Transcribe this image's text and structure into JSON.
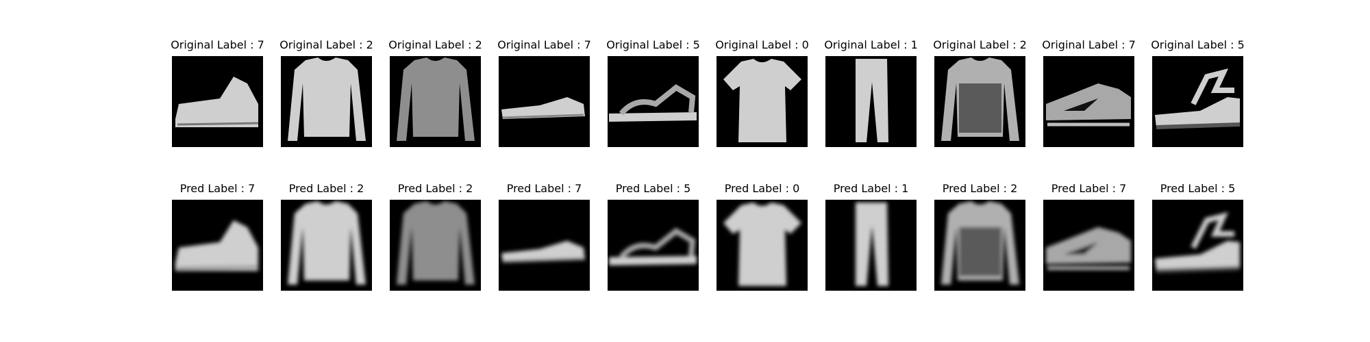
{
  "original_prefix": "Original Label : ",
  "pred_prefix": "Pred Label : ",
  "items": [
    {
      "label": "7",
      "pred": "7",
      "kind": "sneaker-high"
    },
    {
      "label": "2",
      "pred": "2",
      "kind": "pullover"
    },
    {
      "label": "2",
      "pred": "2",
      "kind": "pullover-dark"
    },
    {
      "label": "7",
      "pred": "7",
      "kind": "sneaker-low"
    },
    {
      "label": "5",
      "pred": "5",
      "kind": "sandal"
    },
    {
      "label": "0",
      "pred": "0",
      "kind": "tshirt"
    },
    {
      "label": "1",
      "pred": "1",
      "kind": "trouser"
    },
    {
      "label": "2",
      "pred": "2",
      "kind": "pullover-pattern"
    },
    {
      "label": "7",
      "pred": "7",
      "kind": "sneaker-sport"
    },
    {
      "label": "5",
      "pred": "5",
      "kind": "sandal-wedge"
    }
  ]
}
